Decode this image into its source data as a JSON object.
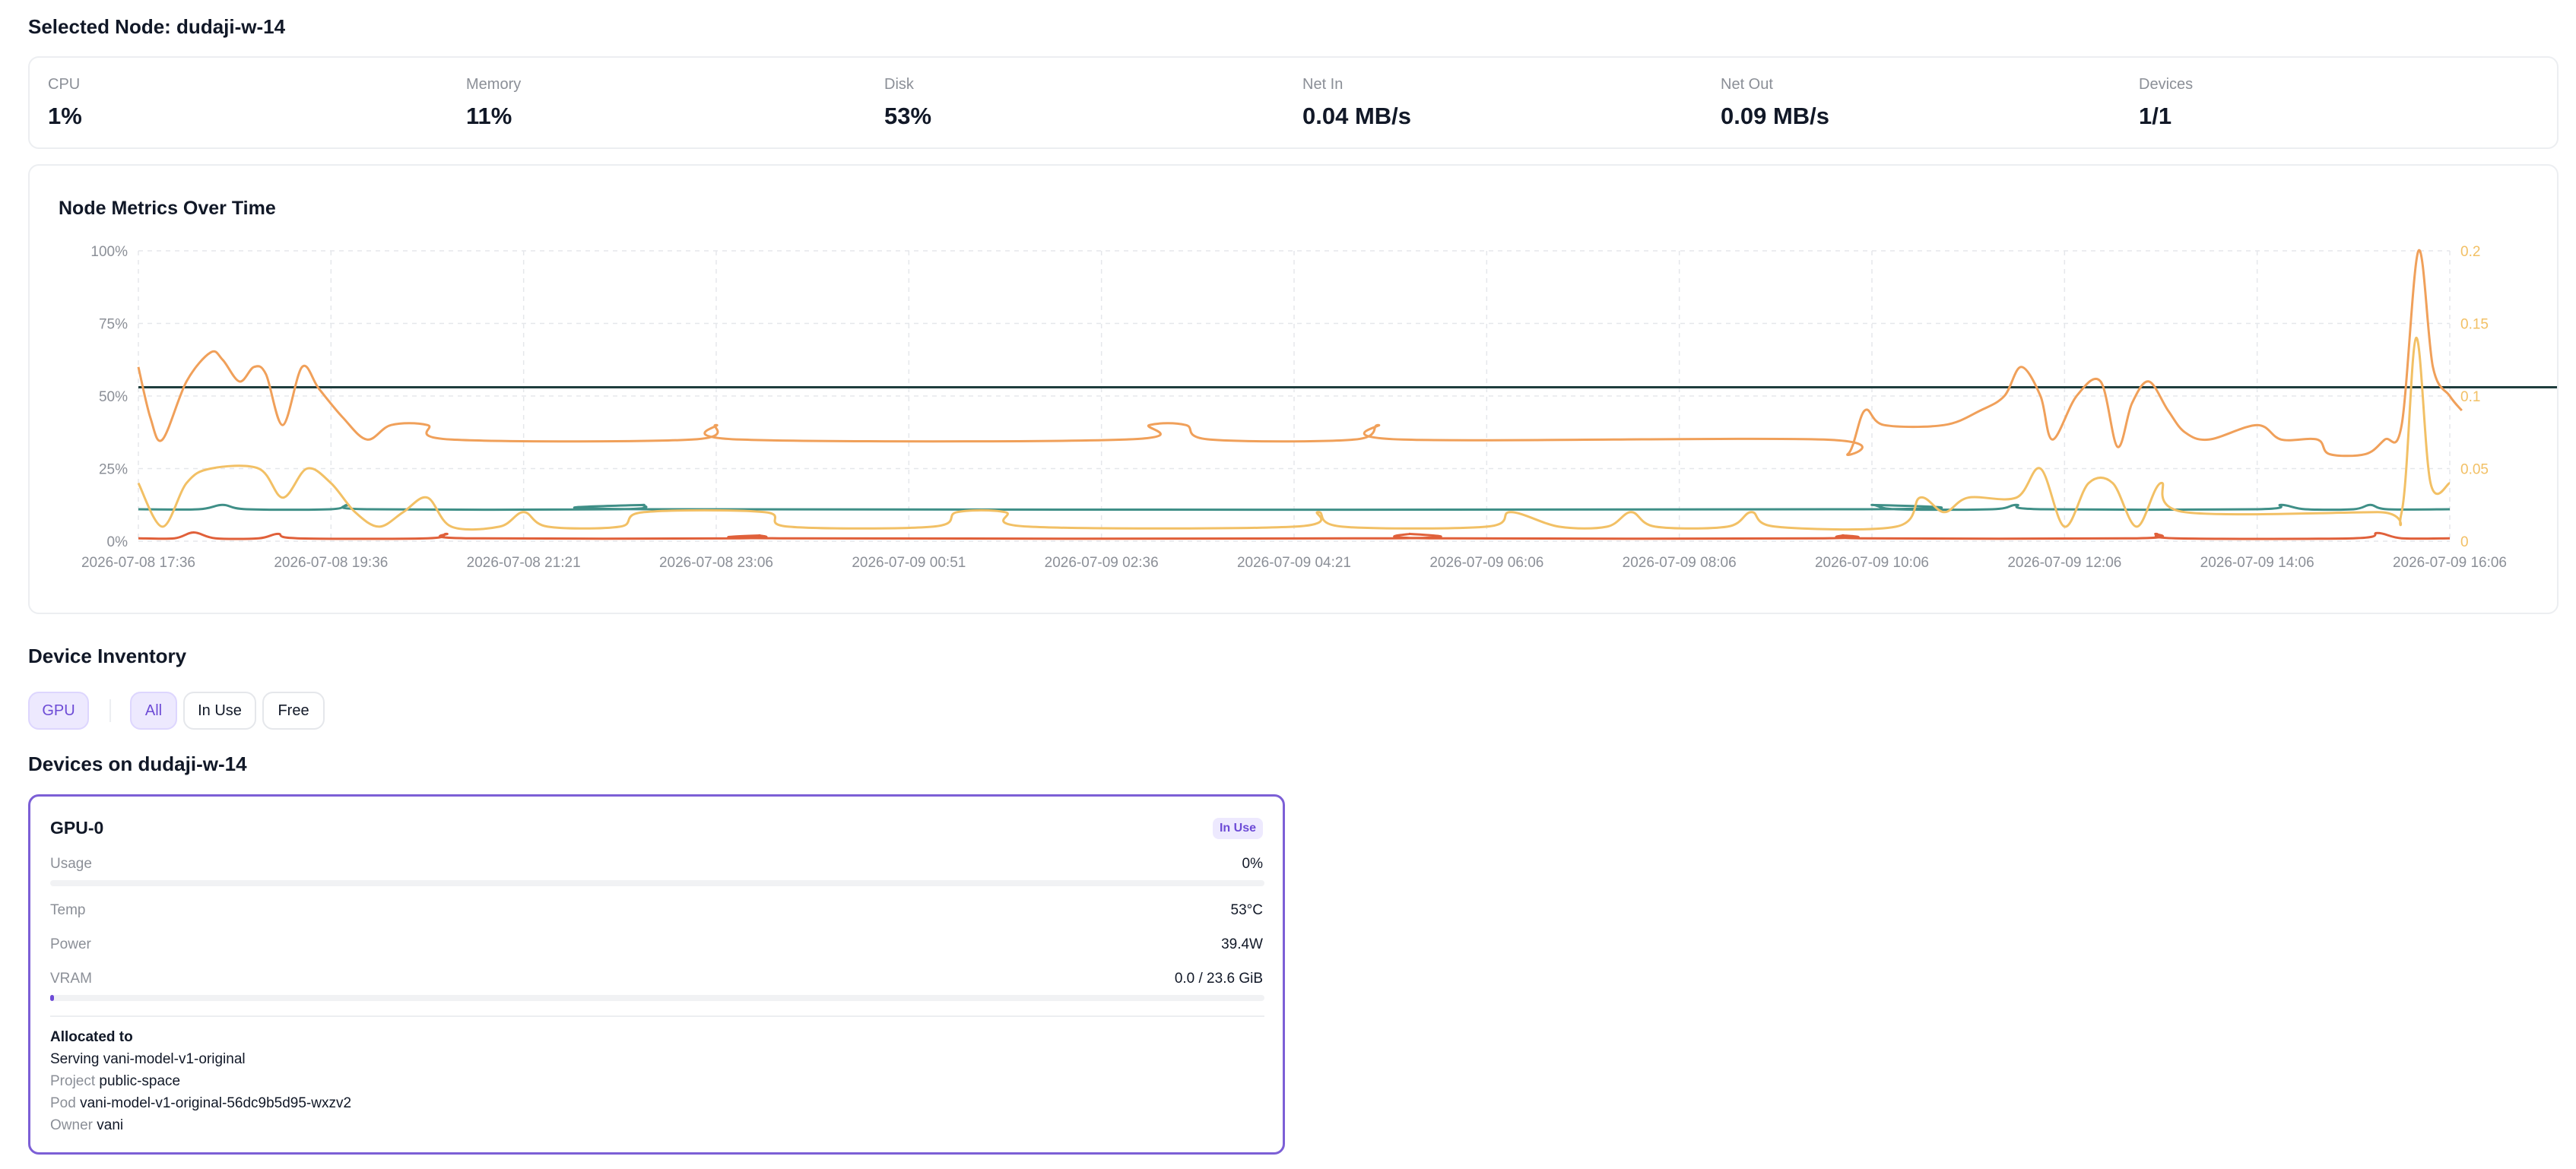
{
  "header": {
    "title": "Selected Node: dudaji-w-14"
  },
  "stats": [
    {
      "label": "CPU",
      "value": "1%"
    },
    {
      "label": "Memory",
      "value": "11%"
    },
    {
      "label": "Disk",
      "value": "53%"
    },
    {
      "label": "Net In",
      "value": "0.04 MB/s"
    },
    {
      "label": "Net Out",
      "value": "0.09 MB/s"
    },
    {
      "label": "Devices",
      "value": "1/1"
    }
  ],
  "chart": {
    "title": "Node Metrics Over Time",
    "colors": {
      "disk": "#1f3d3d",
      "memory": "#3f8f87",
      "cpu": "#e0603a",
      "net_out": "#f0a05a",
      "net_in": "#f2c065",
      "grid": "#e5e7eb",
      "tick": "#8b8f97",
      "right_tick": "#f2c065"
    }
  },
  "chart_data": {
    "type": "line",
    "title": "Node Metrics Over Time",
    "xlabel": "",
    "ylabel": "",
    "x_ticks": [
      "2026-07-08 17:36",
      "2026-07-08 19:36",
      "2026-07-08 21:21",
      "2026-07-08 23:06",
      "2026-07-09 00:51",
      "2026-07-09 02:36",
      "2026-07-09 04:21",
      "2026-07-09 06:06",
      "2026-07-09 08:06",
      "2026-07-09 10:06",
      "2026-07-09 12:06",
      "2026-07-09 14:06",
      "2026-07-09 16:06"
    ],
    "y_left_ticks": [
      "0%",
      "25%",
      "50%",
      "75%",
      "100%"
    ],
    "y_left_range": [
      0,
      100
    ],
    "y_right_ticks": [
      "0",
      "0.05",
      "0.1",
      "0.15",
      "0.2"
    ],
    "y_right_range": [
      0,
      0.2
    ],
    "grid": true,
    "legend": "none",
    "series": [
      {
        "axis": "left",
        "color": "#1f3d3d",
        "points": [
          [
            0,
            53
          ],
          [
            95,
            53
          ],
          [
            96,
            53
          ]
        ]
      },
      {
        "axis": "left",
        "color": "#3f8f87",
        "points": [
          [
            0,
            11
          ],
          [
            2.5,
            11
          ],
          [
            3.5,
            12.5
          ],
          [
            4.5,
            11
          ],
          [
            8,
            11
          ],
          [
            8.7,
            12.5
          ],
          [
            9.5,
            11
          ],
          [
            20,
            11
          ],
          [
            21,
            12.5
          ],
          [
            22,
            11
          ],
          [
            71,
            11
          ],
          [
            72,
            12.5
          ],
          [
            73,
            11
          ],
          [
            77,
            11
          ],
          [
            78,
            12.5
          ],
          [
            79,
            11
          ],
          [
            88,
            11
          ],
          [
            89,
            12.5
          ],
          [
            90,
            11
          ],
          [
            92,
            11
          ],
          [
            92.7,
            12.5
          ],
          [
            93.4,
            11
          ],
          [
            96,
            11
          ]
        ]
      },
      {
        "axis": "left",
        "color": "#e0603a",
        "points": [
          [
            0,
            1
          ],
          [
            1.5,
            1
          ],
          [
            2.3,
            3
          ],
          [
            3.2,
            1
          ],
          [
            5,
            1
          ],
          [
            5.8,
            2.5
          ],
          [
            6.6,
            1
          ],
          [
            12,
            1
          ],
          [
            12.8,
            2.5
          ],
          [
            13.6,
            1
          ],
          [
            25,
            1
          ],
          [
            25.8,
            2
          ],
          [
            26.6,
            1
          ],
          [
            52,
            1
          ],
          [
            52.8,
            2.5
          ],
          [
            53.6,
            1
          ],
          [
            70,
            1
          ],
          [
            70.8,
            2
          ],
          [
            71.6,
            1
          ],
          [
            83,
            1
          ],
          [
            83.8,
            2.5
          ],
          [
            84.6,
            1
          ],
          [
            92,
            1
          ],
          [
            93,
            2.8
          ],
          [
            94,
            1
          ],
          [
            96,
            1
          ]
        ]
      },
      {
        "axis": "right",
        "color": "#f0a05a",
        "points": [
          [
            0,
            0.12
          ],
          [
            0.5,
            0.085
          ],
          [
            1,
            0.07
          ],
          [
            2,
            0.11
          ],
          [
            3,
            0.13
          ],
          [
            3.5,
            0.125
          ],
          [
            4.2,
            0.11
          ],
          [
            4.8,
            0.12
          ],
          [
            5.3,
            0.115
          ],
          [
            6,
            0.08
          ],
          [
            6.8,
            0.12
          ],
          [
            7.5,
            0.105
          ],
          [
            8.5,
            0.085
          ],
          [
            9.5,
            0.07
          ],
          [
            10.5,
            0.08
          ],
          [
            12,
            0.08
          ],
          [
            13,
            0.07
          ],
          [
            23,
            0.07
          ],
          [
            24,
            0.08
          ],
          [
            25,
            0.07
          ],
          [
            41,
            0.07
          ],
          [
            42,
            0.08
          ],
          [
            43.5,
            0.08
          ],
          [
            44.5,
            0.07
          ],
          [
            50.5,
            0.07
          ],
          [
            51.5,
            0.08
          ],
          [
            52.5,
            0.07
          ],
          [
            70,
            0.07
          ],
          [
            71,
            0.06
          ],
          [
            71.7,
            0.09
          ],
          [
            72.5,
            0.08
          ],
          [
            75,
            0.08
          ],
          [
            76.5,
            0.09
          ],
          [
            77.5,
            0.1
          ],
          [
            78.2,
            0.12
          ],
          [
            79,
            0.1
          ],
          [
            79.5,
            0.07
          ],
          [
            80.5,
            0.1
          ],
          [
            81.5,
            0.11
          ],
          [
            82.2,
            0.065
          ],
          [
            82.8,
            0.095
          ],
          [
            83.5,
            0.11
          ],
          [
            84.3,
            0.09
          ],
          [
            85,
            0.075
          ],
          [
            86,
            0.07
          ],
          [
            88,
            0.08
          ],
          [
            89,
            0.07
          ],
          [
            90.5,
            0.07
          ],
          [
            91,
            0.06
          ],
          [
            92.5,
            0.06
          ],
          [
            93.3,
            0.07
          ],
          [
            94,
            0.08
          ],
          [
            94.7,
            0.2
          ],
          [
            95.3,
            0.12
          ],
          [
            96,
            0.1
          ],
          [
            96.5,
            0.09
          ]
        ]
      },
      {
        "axis": "right",
        "color": "#f2c065",
        "points": [
          [
            0,
            0.04
          ],
          [
            1,
            0.01
          ],
          [
            2,
            0.04
          ],
          [
            3,
            0.05
          ],
          [
            5,
            0.05
          ],
          [
            6,
            0.03
          ],
          [
            7,
            0.05
          ],
          [
            8,
            0.04
          ],
          [
            9,
            0.02
          ],
          [
            10,
            0.01
          ],
          [
            11,
            0.02
          ],
          [
            12,
            0.03
          ],
          [
            13,
            0.01
          ],
          [
            15,
            0.01
          ],
          [
            16,
            0.02
          ],
          [
            17,
            0.01
          ],
          [
            20,
            0.01
          ],
          [
            21,
            0.02
          ],
          [
            26,
            0.02
          ],
          [
            27,
            0.01
          ],
          [
            33,
            0.01
          ],
          [
            34,
            0.02
          ],
          [
            36,
            0.02
          ],
          [
            37,
            0.01
          ],
          [
            48,
            0.01
          ],
          [
            49,
            0.02
          ],
          [
            50,
            0.01
          ],
          [
            56,
            0.01
          ],
          [
            57,
            0.02
          ],
          [
            59,
            0.01
          ],
          [
            61,
            0.01
          ],
          [
            62,
            0.02
          ],
          [
            63,
            0.01
          ],
          [
            66,
            0.01
          ],
          [
            67,
            0.02
          ],
          [
            68,
            0.01
          ],
          [
            73,
            0.01
          ],
          [
            74,
            0.03
          ],
          [
            75,
            0.02
          ],
          [
            76,
            0.03
          ],
          [
            78,
            0.03
          ],
          [
            79,
            0.05
          ],
          [
            80,
            0.01
          ],
          [
            81,
            0.04
          ],
          [
            82,
            0.04
          ],
          [
            83,
            0.01
          ],
          [
            84,
            0.04
          ],
          [
            85,
            0.02
          ],
          [
            93,
            0.02
          ],
          [
            94,
            0.02
          ],
          [
            94.6,
            0.14
          ],
          [
            95.2,
            0.04
          ],
          [
            96,
            0.04
          ]
        ]
      }
    ]
  },
  "inventory": {
    "title": "Device Inventory",
    "type_filter": "GPU",
    "filters": [
      "All",
      "In Use",
      "Free"
    ],
    "devices_title": "Devices on dudaji-w-14"
  },
  "device": {
    "name": "GPU-0",
    "badge": "In Use",
    "usage_label": "Usage",
    "usage_value": "0%",
    "usage_fraction": 0.0,
    "temp_label": "Temp",
    "temp_value": "53°C",
    "power_label": "Power",
    "power_value": "39.4W",
    "vram_label": "VRAM",
    "vram_value": "0.0 / 23.6 GiB",
    "vram_fraction": 0.003,
    "allocated_title": "Allocated to",
    "serving": "Serving vani-model-v1-original",
    "project_key": "Project",
    "project_value": "public-space",
    "pod_key": "Pod",
    "pod_value": "vani-model-v1-original-56dc9b5d95-wxzv2",
    "owner_key": "Owner",
    "owner_value": "vani"
  }
}
